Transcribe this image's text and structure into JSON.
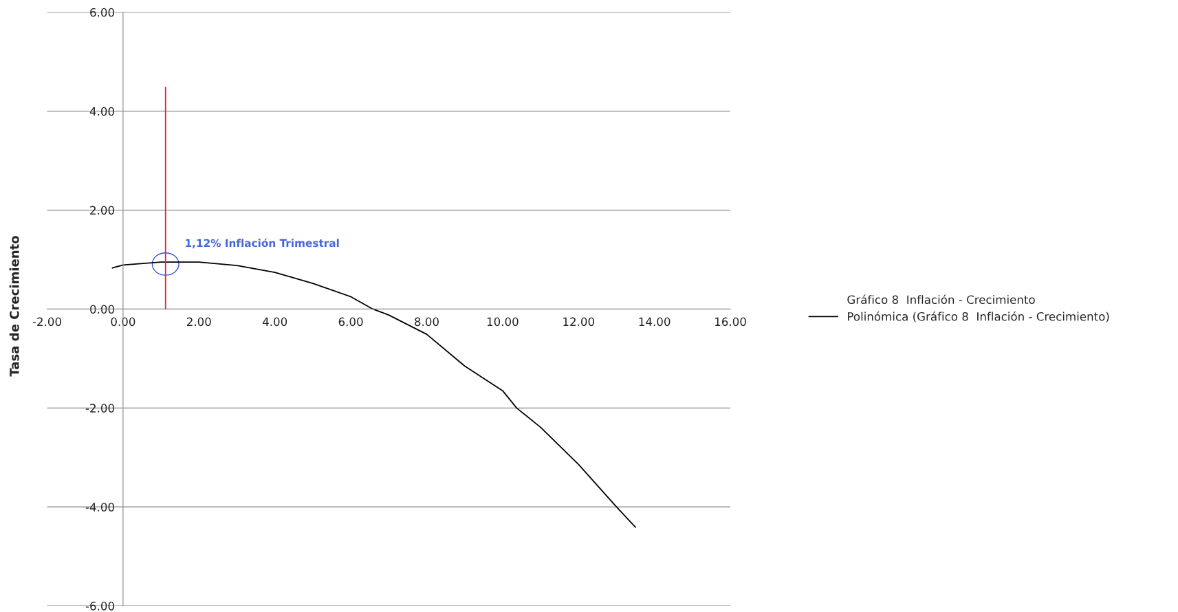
{
  "chart_data": {
    "type": "line",
    "ylabel": "Tasa de Crecimiento",
    "xlim": [
      -2,
      16
    ],
    "xticks": [
      {
        "value": -2,
        "label": "-2.00"
      },
      {
        "value": 0,
        "label": "0.00"
      },
      {
        "value": 2,
        "label": "2.00"
      },
      {
        "value": 4,
        "label": "4.00"
      },
      {
        "value": 6,
        "label": "6.00"
      },
      {
        "value": 8,
        "label": "8.00"
      },
      {
        "value": 10,
        "label": "10.00"
      },
      {
        "value": 12,
        "label": "12.00"
      },
      {
        "value": 14,
        "label": "14.00"
      },
      {
        "value": 16,
        "label": "16.00"
      }
    ],
    "ylim": [
      -6,
      6
    ],
    "yticks": [
      {
        "value": -6,
        "label": "-6.00"
      },
      {
        "value": -4,
        "label": "-4.00"
      },
      {
        "value": -2,
        "label": "-2.00"
      },
      {
        "value": 0,
        "label": "0.00"
      },
      {
        "value": 2,
        "label": "2.00"
      },
      {
        "value": 4,
        "label": "4.00"
      },
      {
        "value": 6,
        "label": "6.00"
      }
    ],
    "grid": "y",
    "legend": "right",
    "marker": "none",
    "line_style": "solid",
    "series": [
      {
        "name": "Gráfico 8  Inflación - Crecimiento",
        "type": "scatter",
        "color": "#000000"
      },
      {
        "name": "Polinómica (Gráfico 8  Inflación - Crecimiento)",
        "color": "#000000",
        "x": [
          -0.28,
          0,
          1,
          2,
          3,
          4,
          5,
          6,
          6.58,
          7,
          8,
          9,
          10,
          10.37,
          11,
          12,
          13,
          13.5
        ],
        "values": [
          0.83,
          0.89,
          0.95,
          0.95,
          0.88,
          0.74,
          0.52,
          0.25,
          0,
          -0.12,
          -0.51,
          -1.15,
          -1.65,
          -2,
          -2.39,
          -3.14,
          -4.0,
          -4.41
        ]
      },
      {
        "type": "line",
        "color": "#e0203c",
        "x": [
          1.12,
          1.12
        ],
        "values": [
          0,
          4.48
        ]
      }
    ],
    "annotations": [
      {
        "text": "1,12% Inflación Trimestral",
        "x": 1.12,
        "y": 0.91
      }
    ]
  }
}
